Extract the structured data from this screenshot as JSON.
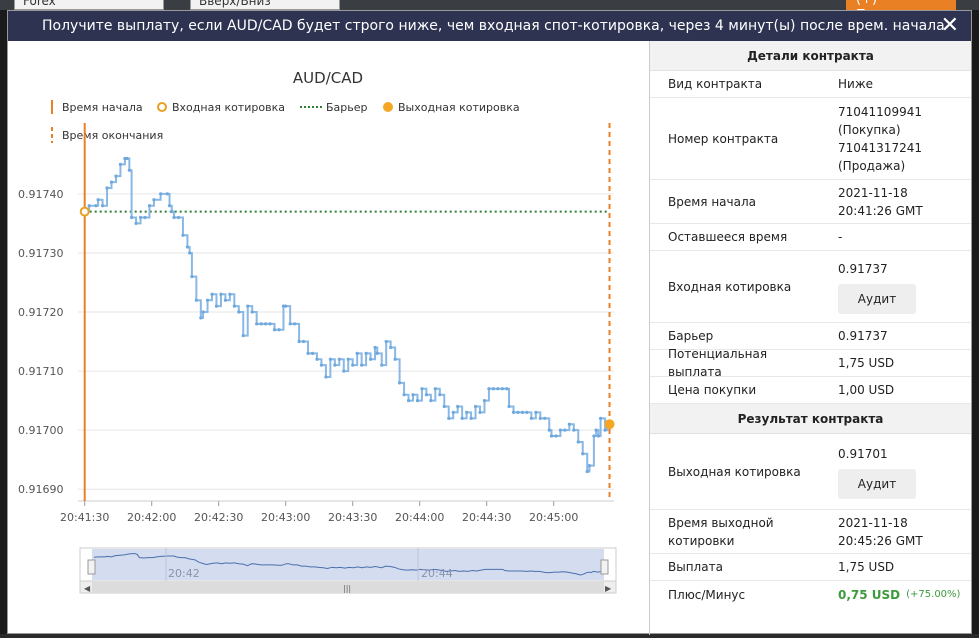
{
  "background": {
    "select1": "Forex",
    "select2": "Вверх/Вниз",
    "deposit_button": "(+) Пополнение"
  },
  "modal": {
    "title": "Получите выплату, если AUD/CAD будет строго ниже, чем входная спот-котировка, через 4 минут(ы) после врем. начала контракта.",
    "close": "✕"
  },
  "chart_data": {
    "type": "line",
    "title": "AUD/CAD",
    "legend": [
      {
        "label": "Время начала",
        "style": "solid-vertical",
        "color": "#e98024"
      },
      {
        "label": "Входная котировка",
        "style": "hollow-dot",
        "color": "#e9a020"
      },
      {
        "label": "Барьер",
        "style": "dotted",
        "color": "#2e7d32"
      },
      {
        "label": "Выходная котировка",
        "style": "filled-dot",
        "color": "#f5a623"
      },
      {
        "label": "Время окончания",
        "style": "dashed-vertical",
        "color": "#e98024"
      }
    ],
    "y_ticks": [
      "0.91740",
      "0.91730",
      "0.91720",
      "0.91710",
      "0.91700",
      "0.91690"
    ],
    "x_ticks": [
      "20:41:30",
      "20:42:00",
      "20:42:30",
      "20:43:00",
      "20:43:30",
      "20:44:00",
      "20:44:30",
      "20:45:00"
    ],
    "ylim": [
      0.91688,
      0.91752
    ],
    "xlim_seconds": [
      -3,
      237
    ],
    "barrier": 0.91737,
    "entry": {
      "t": 0,
      "value": 0.91737
    },
    "exit": {
      "t": 235,
      "value": 0.91701
    },
    "series": [
      [
        0,
        0.91737
      ],
      [
        2,
        0.91738
      ],
      [
        5,
        0.91738
      ],
      [
        6,
        0.91739
      ],
      [
        8,
        0.91738
      ],
      [
        10,
        0.91741
      ],
      [
        12,
        0.91742
      ],
      [
        14,
        0.91743
      ],
      [
        16,
        0.91745
      ],
      [
        18,
        0.91746
      ],
      [
        19,
        0.91746
      ],
      [
        20,
        0.91744
      ],
      [
        21,
        0.91736
      ],
      [
        23,
        0.91735
      ],
      [
        25,
        0.91736
      ],
      [
        27,
        0.91736
      ],
      [
        29,
        0.91738
      ],
      [
        31,
        0.91739
      ],
      [
        34,
        0.9174
      ],
      [
        37,
        0.9174
      ],
      [
        38,
        0.91738
      ],
      [
        39,
        0.91737
      ],
      [
        40,
        0.91736
      ],
      [
        42,
        0.91736
      ],
      [
        44,
        0.91733
      ],
      [
        46,
        0.91731
      ],
      [
        47,
        0.9173
      ],
      [
        48,
        0.91726
      ],
      [
        50,
        0.91722
      ],
      [
        52,
        0.91719
      ],
      [
        53,
        0.9172
      ],
      [
        55,
        0.91722
      ],
      [
        57,
        0.91723
      ],
      [
        59,
        0.91721
      ],
      [
        61,
        0.91723
      ],
      [
        63,
        0.91722
      ],
      [
        65,
        0.91723
      ],
      [
        67,
        0.91721
      ],
      [
        69,
        0.9172
      ],
      [
        71,
        0.91716
      ],
      [
        73,
        0.91721
      ],
      [
        75,
        0.9172
      ],
      [
        77,
        0.91718
      ],
      [
        79,
        0.91718
      ],
      [
        81,
        0.91718
      ],
      [
        83,
        0.91718
      ],
      [
        85,
        0.91717
      ],
      [
        87,
        0.91717
      ],
      [
        89,
        0.91721
      ],
      [
        90,
        0.91721
      ],
      [
        92,
        0.91718
      ],
      [
        94,
        0.91718
      ],
      [
        96,
        0.91715
      ],
      [
        98,
        0.91715
      ],
      [
        100,
        0.91713
      ],
      [
        102,
        0.91713
      ],
      [
        104,
        0.91712
      ],
      [
        106,
        0.91711
      ],
      [
        108,
        0.91709
      ],
      [
        110,
        0.91712
      ],
      [
        112,
        0.91711
      ],
      [
        114,
        0.91712
      ],
      [
        116,
        0.9171
      ],
      [
        118,
        0.91712
      ],
      [
        120,
        0.91711
      ],
      [
        122,
        0.91713
      ],
      [
        124,
        0.91711
      ],
      [
        126,
        0.91713
      ],
      [
        128,
        0.91712
      ],
      [
        130,
        0.91714
      ],
      [
        131,
        0.91713
      ],
      [
        133,
        0.91711
      ],
      [
        135,
        0.91715
      ],
      [
        137,
        0.91714
      ],
      [
        139,
        0.91712
      ],
      [
        141,
        0.91708
      ],
      [
        143,
        0.91706
      ],
      [
        145,
        0.91705
      ],
      [
        147,
        0.91706
      ],
      [
        149,
        0.91705
      ],
      [
        151,
        0.91707
      ],
      [
        153,
        0.91706
      ],
      [
        155,
        0.91705
      ],
      [
        157,
        0.91707
      ],
      [
        159,
        0.91706
      ],
      [
        161,
        0.91704
      ],
      [
        163,
        0.91702
      ],
      [
        165,
        0.91703
      ],
      [
        167,
        0.91704
      ],
      [
        169,
        0.91702
      ],
      [
        171,
        0.91703
      ],
      [
        173,
        0.91702
      ],
      [
        175,
        0.91704
      ],
      [
        177,
        0.91703
      ],
      [
        179,
        0.91705
      ],
      [
        181,
        0.91707
      ],
      [
        183,
        0.91707
      ],
      [
        185,
        0.91707
      ],
      [
        187,
        0.91707
      ],
      [
        189,
        0.91707
      ],
      [
        190,
        0.91704
      ],
      [
        192,
        0.91703
      ],
      [
        194,
        0.91703
      ],
      [
        196,
        0.91703
      ],
      [
        198,
        0.91703
      ],
      [
        200,
        0.91702
      ],
      [
        202,
        0.91703
      ],
      [
        204,
        0.91702
      ],
      [
        206,
        0.91702
      ],
      [
        208,
        0.917
      ],
      [
        209,
        0.91699
      ],
      [
        211,
        0.91699
      ],
      [
        213,
        0.917
      ],
      [
        215,
        0.917
      ],
      [
        217,
        0.91701
      ],
      [
        219,
        0.917
      ],
      [
        221,
        0.91698
      ],
      [
        223,
        0.91696
      ],
      [
        225,
        0.91693
      ],
      [
        226,
        0.91694
      ],
      [
        228,
        0.91699
      ],
      [
        229,
        0.917
      ],
      [
        230,
        0.91699
      ],
      [
        231,
        0.91702
      ],
      [
        233,
        0.917
      ],
      [
        234,
        0.91701
      ],
      [
        235,
        0.91701
      ]
    ],
    "navigator": {
      "labels": [
        "20:42",
        "20:44"
      ]
    }
  },
  "details": {
    "section_title": "Детали контракта",
    "rows": [
      {
        "label": "Вид контракта",
        "value": "Ниже"
      },
      {
        "label": "Номер контракта",
        "value": "71041109941 (Покупка) 71041317241 (Продажа)"
      },
      {
        "label": "Время начала",
        "value": "2021-11-18 20:41:26 GMT"
      },
      {
        "label": "Оставшееся время",
        "value": "-"
      },
      {
        "label": "Входная котировка",
        "value": "0.91737",
        "button": "Аудит"
      },
      {
        "label": "Барьер",
        "value": "0.91737"
      },
      {
        "label": "Потенциальная выплата",
        "value": "1,75 USD"
      },
      {
        "label": "Цена покупки",
        "value": "1,00 USD"
      }
    ]
  },
  "result": {
    "section_title": "Результат контракта",
    "exit_label": "Выходная котировка",
    "exit_value": "0.91701",
    "exit_button": "Аудит",
    "exit_time_label": "Время выходной котировки",
    "exit_time_value": "2021-11-18 20:45:26 GMT",
    "payout_label": "Выплата",
    "payout_value": "1,75 USD",
    "pl_label": "Плюс/Минус",
    "pl_value": "0,75 USD",
    "pl_percent": "(+75.00%)"
  }
}
